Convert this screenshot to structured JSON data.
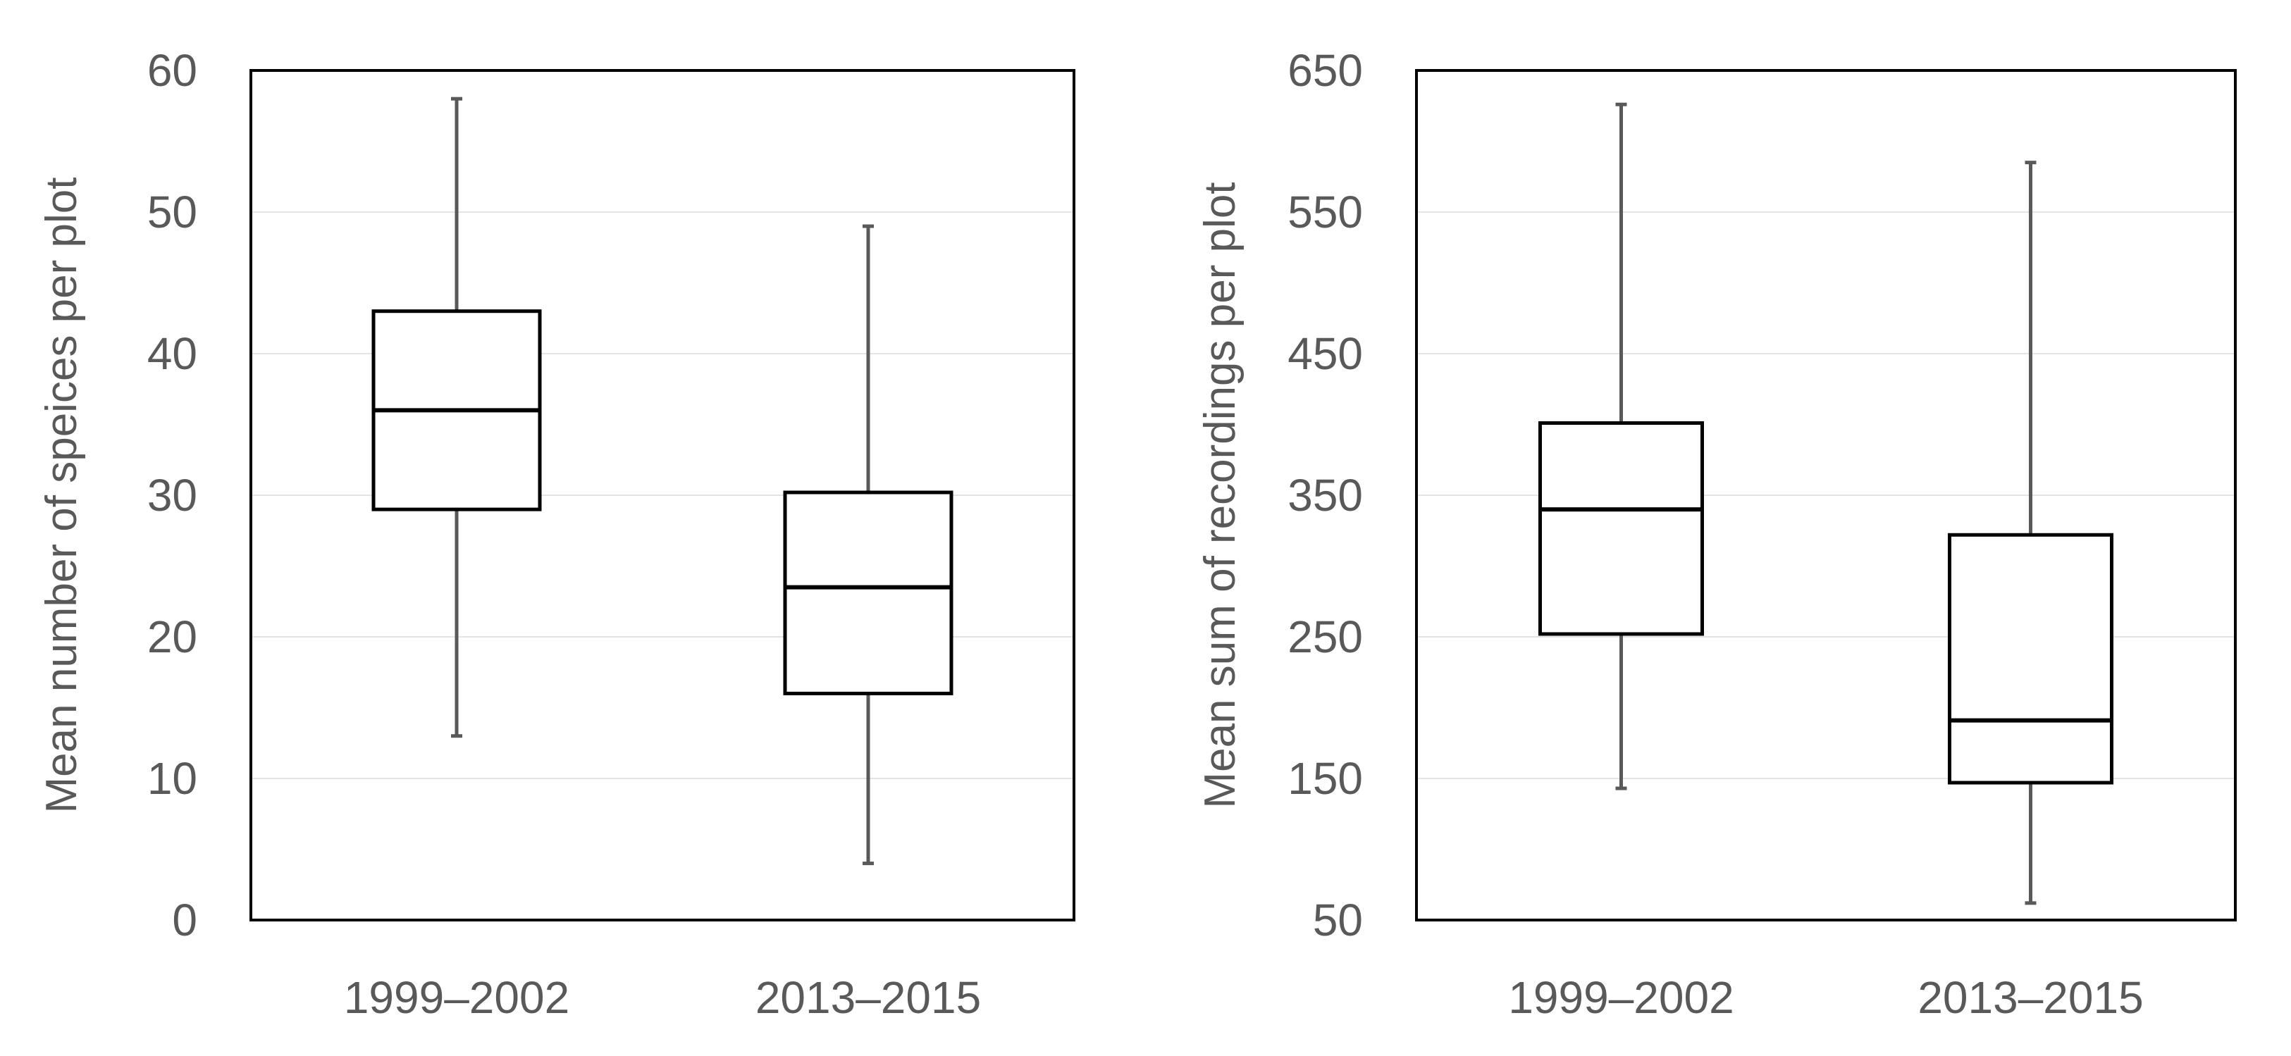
{
  "chart_data": [
    {
      "type": "box",
      "ylabel": "Mean number of speices per plot",
      "xlabel": "",
      "ylim": [
        0,
        60
      ],
      "yticks": [
        "0",
        "10",
        "20",
        "30",
        "40",
        "50",
        "60"
      ],
      "ytick_values": [
        0,
        10,
        20,
        30,
        40,
        50,
        60
      ],
      "grid": true,
      "categories": [
        "1999–2002",
        "2013–2015"
      ],
      "boxes": [
        {
          "category": "1999–2002",
          "min": 13,
          "q1": 29,
          "median": 36,
          "q3": 43,
          "max": 58
        },
        {
          "category": "2013–2015",
          "min": 4,
          "q1": 16,
          "median": 23.5,
          "q3": 30.2,
          "max": 49
        }
      ]
    },
    {
      "type": "box",
      "ylabel": "Mean sum of recordings per plot",
      "xlabel": "",
      "ylim": [
        50,
        650
      ],
      "yticks": [
        "50",
        "150",
        "250",
        "350",
        "450",
        "550",
        "650"
      ],
      "ytick_values": [
        50,
        150,
        250,
        350,
        450,
        550,
        650
      ],
      "grid": true,
      "categories": [
        "1999–2002",
        "2013–2015"
      ],
      "boxes": [
        {
          "category": "1999–2002",
          "min": 143,
          "q1": 252,
          "median": 340,
          "q3": 401,
          "max": 626
        },
        {
          "category": "2013–2015",
          "min": 62,
          "q1": 147,
          "median": 191,
          "q3": 322,
          "max": 585
        }
      ]
    }
  ],
  "colors": {
    "box_stroke": "#000000",
    "whisker": "#595959",
    "text": "#595959",
    "grid": "#e4e4e4"
  }
}
